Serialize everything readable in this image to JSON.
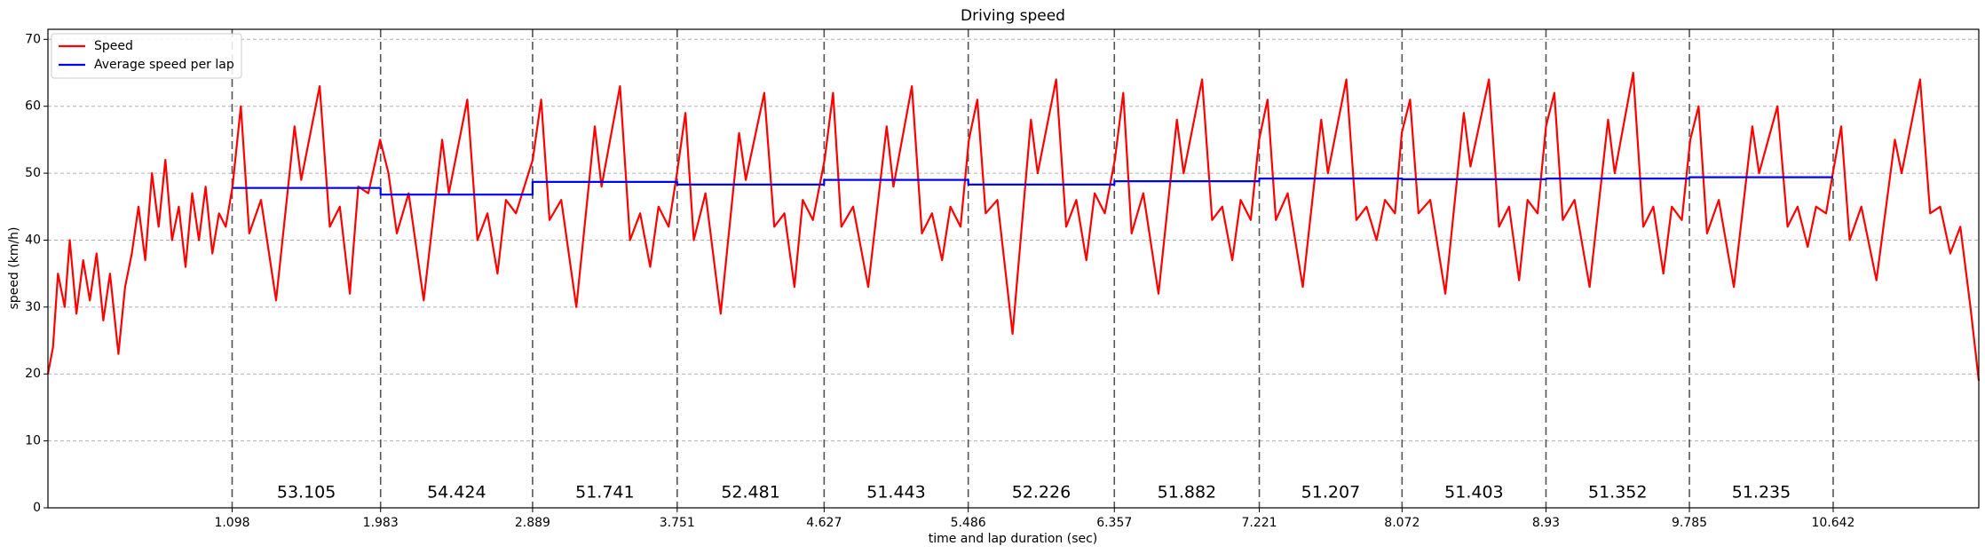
{
  "chart_data": {
    "type": "line",
    "title": "Driving speed",
    "x_label": "time and lap duration (sec)",
    "y_label": "speed (km/h)",
    "xlim": [
      0,
      11.51
    ],
    "ylim": [
      0,
      71.5
    ],
    "xticks": [
      1.098,
      1.983,
      2.889,
      3.751,
      4.627,
      5.486,
      6.357,
      7.221,
      8.072,
      8.93,
      9.785,
      10.642
    ],
    "yticks": [
      0,
      10,
      20,
      30,
      40,
      50,
      60,
      70
    ],
    "grid": true,
    "legend": "upper left",
    "lap_durations": [
      53.105,
      54.424,
      51.741,
      52.481,
      51.443,
      52.226,
      51.882,
      51.207,
      51.403,
      51.352,
      51.235
    ],
    "series": [
      {
        "name": "Speed",
        "color": "#ff0000",
        "x": [
          0,
          0.03,
          0.06,
          0.1,
          0.13,
          0.17,
          0.21,
          0.25,
          0.29,
          0.33,
          0.37,
          0.42,
          0.46,
          0.5,
          0.54,
          0.58,
          0.62,
          0.66,
          0.7,
          0.74,
          0.78,
          0.82,
          0.86,
          0.9,
          0.94,
          0.98,
          1.02,
          1.06,
          1.1,
          1.15,
          1.2,
          1.27,
          1.36,
          1.47,
          1.51,
          1.62,
          1.68,
          1.74,
          1.8,
          1.85,
          1.91,
          1.98,
          2.03,
          2.08,
          2.15,
          2.24,
          2.35,
          2.39,
          2.5,
          2.56,
          2.62,
          2.68,
          2.73,
          2.79,
          2.89,
          2.94,
          2.99,
          3.06,
          3.15,
          3.26,
          3.3,
          3.41,
          3.47,
          3.53,
          3.59,
          3.64,
          3.7,
          3.75,
          3.8,
          3.85,
          3.92,
          4.01,
          4.12,
          4.16,
          4.27,
          4.33,
          4.39,
          4.45,
          4.5,
          4.56,
          4.63,
          4.68,
          4.73,
          4.8,
          4.89,
          5.0,
          5.04,
          5.15,
          5.21,
          5.27,
          5.33,
          5.38,
          5.44,
          5.49,
          5.54,
          5.59,
          5.66,
          5.75,
          5.86,
          5.9,
          6.01,
          6.07,
          6.13,
          6.19,
          6.24,
          6.3,
          6.36,
          6.41,
          6.46,
          6.53,
          6.62,
          6.73,
          6.77,
          6.88,
          6.94,
          7.0,
          7.06,
          7.11,
          7.17,
          7.22,
          7.27,
          7.32,
          7.39,
          7.48,
          7.59,
          7.63,
          7.74,
          7.8,
          7.86,
          7.92,
          7.97,
          8.03,
          8.07,
          8.12,
          8.17,
          8.24,
          8.33,
          8.44,
          8.48,
          8.59,
          8.65,
          8.71,
          8.77,
          8.82,
          8.88,
          8.93,
          8.98,
          9.03,
          9.1,
          9.19,
          9.3,
          9.34,
          9.45,
          9.51,
          9.57,
          9.63,
          9.68,
          9.74,
          9.79,
          9.84,
          9.89,
          9.96,
          10.05,
          10.16,
          10.2,
          10.31,
          10.37,
          10.43,
          10.49,
          10.54,
          10.6,
          10.64,
          10.69,
          10.74,
          10.81,
          10.9,
          11.01,
          11.05,
          11.16,
          11.22,
          11.28,
          11.34,
          11.4,
          11.46,
          11.51
        ],
        "values": [
          20,
          24,
          35,
          30,
          40,
          29,
          37,
          31,
          38,
          28,
          35,
          23,
          33,
          38,
          45,
          37,
          50,
          42,
          52,
          40,
          45,
          36,
          47,
          40,
          48,
          38,
          44,
          42,
          48,
          60,
          41,
          46,
          31,
          57,
          49,
          63,
          42,
          45,
          32,
          48,
          47,
          55,
          50,
          41,
          47,
          31,
          55,
          47,
          61,
          40,
          44,
          35,
          46,
          44,
          52,
          61,
          43,
          46,
          30,
          57,
          48,
          63,
          40,
          44,
          36,
          45,
          42,
          50,
          59,
          40,
          47,
          29,
          56,
          49,
          62,
          42,
          44,
          33,
          46,
          43,
          52,
          62,
          42,
          45,
          33,
          57,
          48,
          63,
          41,
          44,
          37,
          45,
          42,
          55,
          61,
          44,
          46,
          26,
          58,
          50,
          64,
          42,
          46,
          37,
          47,
          44,
          52,
          62,
          41,
          47,
          32,
          58,
          50,
          64,
          43,
          45,
          37,
          46,
          43,
          55,
          61,
          43,
          47,
          33,
          58,
          50,
          64,
          43,
          45,
          40,
          46,
          44,
          56,
          61,
          44,
          46,
          32,
          59,
          51,
          64,
          42,
          45,
          34,
          46,
          44,
          57,
          62,
          43,
          46,
          33,
          58,
          50,
          65,
          42,
          45,
          35,
          45,
          43,
          55,
          60,
          41,
          46,
          33,
          57,
          50,
          60,
          42,
          45,
          39,
          45,
          44,
          50,
          57,
          40,
          45,
          34,
          55,
          50,
          64,
          44,
          45,
          38,
          42,
          30,
          19
        ]
      },
      {
        "name": "Average speed per lap",
        "color": "#0000ff",
        "x": [
          1.098,
          1.983,
          1.983,
          2.889,
          2.889,
          3.751,
          3.751,
          4.627,
          4.627,
          5.486,
          5.486,
          6.357,
          6.357,
          7.221,
          7.221,
          8.072,
          8.072,
          8.93,
          8.93,
          9.785,
          9.785,
          10.642
        ],
        "values": [
          47.8,
          47.8,
          46.8,
          46.8,
          48.7,
          48.7,
          48.3,
          48.3,
          49.0,
          49.0,
          48.3,
          48.3,
          48.8,
          48.8,
          49.2,
          49.2,
          49.1,
          49.1,
          49.2,
          49.2,
          49.4,
          49.4
        ]
      }
    ]
  }
}
